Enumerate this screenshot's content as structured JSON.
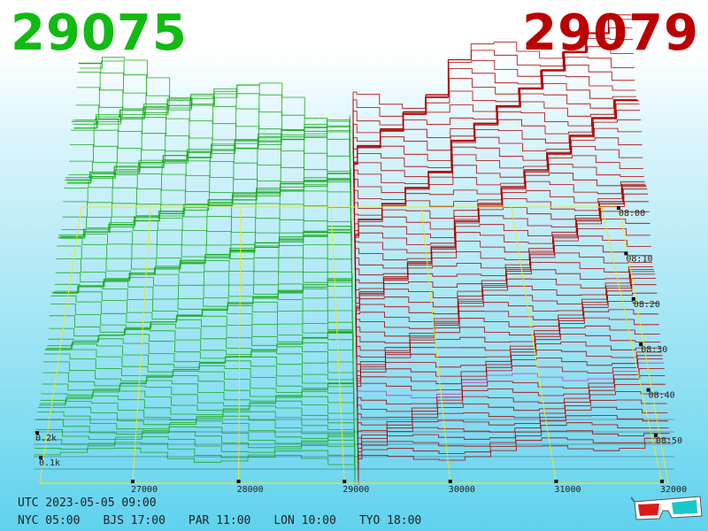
{
  "header": {
    "bid_price": "29075",
    "ask_price": "29079",
    "bid_color": "#11bb11",
    "ask_color": "#bb0000"
  },
  "footer": {
    "utc_time": "UTC 2023-05-05 09:00",
    "zones": [
      "NYC 05:00",
      "BJS 17:00",
      "PAR 11:00",
      "LON 10:00",
      "TYO 18:00"
    ]
  },
  "chart_data": {
    "type": "3d-depth-chart",
    "description_axes": {
      "x": "price",
      "y": "cumulative volume",
      "z": "time"
    },
    "price_ticks": [
      "27000",
      "28000",
      "29000",
      "30000",
      "31000",
      "32000"
    ],
    "volume_ticks": [
      "0.1k",
      "0.2k"
    ],
    "time_ticks": [
      "08:00",
      "08:10",
      "08:20",
      "08:30",
      "08:40",
      "08:50"
    ],
    "bid_color": "#1aaa1a",
    "ask_color": "#b00000",
    "grid_color": "#e8e830"
  },
  "icons": {
    "glasses": "3d-glasses-icon"
  }
}
